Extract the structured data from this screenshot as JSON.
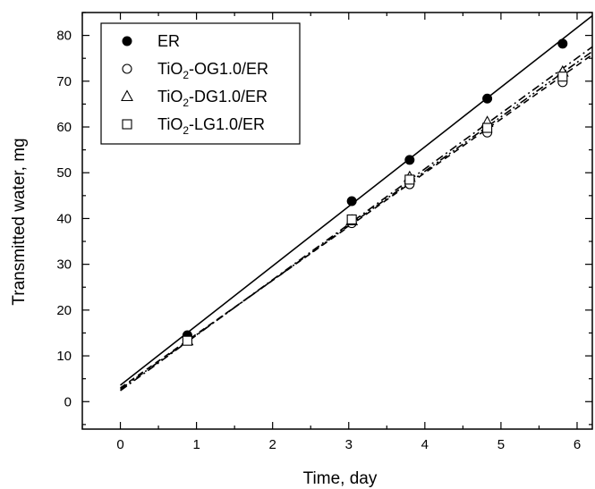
{
  "chart_data": {
    "type": "scatter",
    "xlabel": "Time, day",
    "ylabel": "Transmitted water, mg",
    "xlim": [
      -0.5,
      6.2
    ],
    "ylim": [
      -6,
      85
    ],
    "x_ticks": [
      0,
      1,
      2,
      3,
      4,
      5,
      6
    ],
    "y_ticks": [
      0,
      10,
      20,
      30,
      40,
      50,
      60,
      70,
      80
    ],
    "grid": false,
    "legend_position": "top-left",
    "series": [
      {
        "name": "ER",
        "legend_prefix": "ER",
        "legend_sub": "",
        "legend_suffix": "",
        "marker": "filled-circle",
        "line_style": "solid",
        "points": [
          {
            "x": 0.88,
            "y": 14.5
          },
          {
            "x": 3.04,
            "y": 43.8
          },
          {
            "x": 3.8,
            "y": 52.8
          },
          {
            "x": 4.82,
            "y": 66.2
          },
          {
            "x": 5.81,
            "y": 78.2
          }
        ],
        "fit": {
          "x0": 0,
          "y0": 3.6,
          "x1": 6.2,
          "y1": 84.3
        }
      },
      {
        "name": "TiO2-OG1.0/ER",
        "legend_prefix": "TiO",
        "legend_sub": "2",
        "legend_suffix": "-OG1.0/ER",
        "marker": "open-circle",
        "line_style": "dash",
        "points": [
          {
            "x": 0.88,
            "y": 13.5
          },
          {
            "x": 3.04,
            "y": 39.0
          },
          {
            "x": 3.8,
            "y": 47.5
          },
          {
            "x": 4.82,
            "y": 58.8
          },
          {
            "x": 5.81,
            "y": 69.8
          }
        ],
        "fit": {
          "x0": 0,
          "y0": 3.0,
          "x1": 6.2,
          "y1": 75.8
        }
      },
      {
        "name": "TiO2-DG1.0/ER",
        "legend_prefix": "TiO",
        "legend_sub": "2",
        "legend_suffix": "-DG1.0/ER",
        "marker": "open-triangle",
        "line_style": "dashdot",
        "points": [
          {
            "x": 0.88,
            "y": 13.3
          },
          {
            "x": 3.04,
            "y": 39.5
          },
          {
            "x": 3.8,
            "y": 49.0
          },
          {
            "x": 4.82,
            "y": 61.0
          },
          {
            "x": 5.81,
            "y": 72.0
          }
        ],
        "fit": {
          "x0": 0,
          "y0": 2.4,
          "x1": 6.2,
          "y1": 77.5
        }
      },
      {
        "name": "TiO2-LG1.0/ER",
        "legend_prefix": "TiO",
        "legend_sub": "2",
        "legend_suffix": "-LG1.0/ER",
        "marker": "open-square",
        "line_style": "dashdotdot",
        "points": [
          {
            "x": 0.88,
            "y": 13.3
          },
          {
            "x": 3.04,
            "y": 39.8
          },
          {
            "x": 3.8,
            "y": 48.5
          },
          {
            "x": 4.82,
            "y": 59.8
          },
          {
            "x": 5.81,
            "y": 71.0
          }
        ],
        "fit": {
          "x0": 0,
          "y0": 2.7,
          "x1": 6.2,
          "y1": 76.5
        }
      }
    ]
  }
}
